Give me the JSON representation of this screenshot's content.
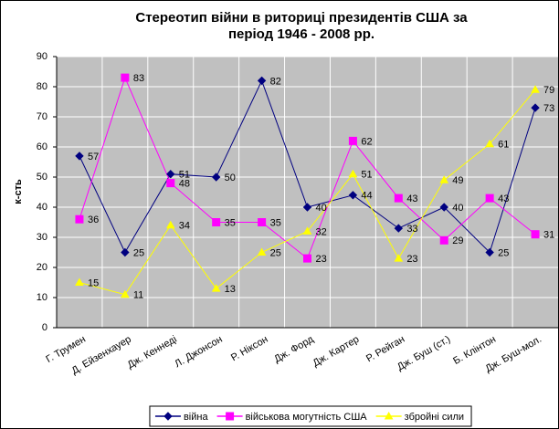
{
  "chart_data": {
    "type": "line",
    "title": [
      "Стереотип війни в риториці президентів США за",
      "період 1946 - 2008 рр."
    ],
    "y_label": "к-сть",
    "categories": [
      "Г. Трумен",
      "Д. Ейзенхауер",
      "Дж. Кеннеді",
      "Л. Джонсон",
      "Р. Ніксон",
      "Дж. Форд",
      "Дж. Картер",
      "Р. Рейган",
      "Дж. Буш (ст.)",
      "Б. Клінтон",
      "Дж. Буш-мол."
    ],
    "series": [
      {
        "name": "війна",
        "color": "#000080",
        "marker": "diamond",
        "values": [
          57,
          25,
          51,
          50,
          82,
          40,
          44,
          33,
          40,
          25,
          73
        ]
      },
      {
        "name": "військова могутність США",
        "color": "#ff00ff",
        "marker": "square",
        "values": [
          36,
          83,
          48,
          35,
          35,
          23,
          62,
          43,
          29,
          43,
          31
        ]
      },
      {
        "name": "збройні сили",
        "color": "#ffff00",
        "marker": "triangle",
        "values": [
          15,
          11,
          34,
          13,
          25,
          32,
          51,
          23,
          49,
          61,
          79
        ]
      }
    ],
    "ylim": [
      0,
      90
    ],
    "yticks": [
      0,
      10,
      20,
      30,
      40,
      50,
      60,
      70,
      80,
      90
    ],
    "grid": true,
    "legend": "bottom",
    "plot_background": "#c0c0c0"
  }
}
